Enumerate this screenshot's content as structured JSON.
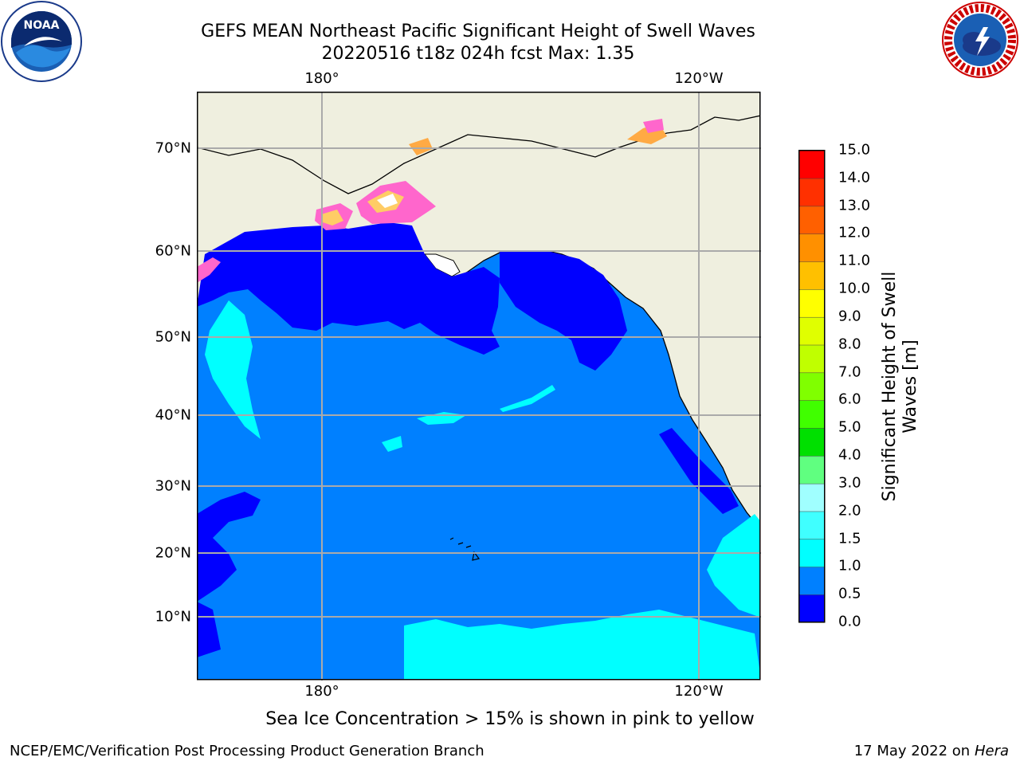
{
  "title": {
    "line1": "GEFS MEAN Northeast Pacific Significant Height of Swell Waves",
    "line2": "20220516 t18z 024h fcst   Max: 1.35"
  },
  "map": {
    "top_labels": [
      "180°",
      "120°W"
    ],
    "bottom_labels": [
      "180°",
      "120°W"
    ],
    "lat_labels": [
      "70°N",
      "60°N",
      "50°N",
      "40°N",
      "30°N",
      "20°N",
      "10°N"
    ]
  },
  "colorbar": {
    "title": "Significant Height of Swell Waves [m]",
    "ticks": [
      "0.0",
      "0.5",
      "1.0",
      "1.5",
      "2.0",
      "3.0",
      "4.0",
      "5.0",
      "6.0",
      "7.0",
      "8.0",
      "9.0",
      "10.0",
      "11.0",
      "12.0",
      "13.0",
      "14.0",
      "15.0"
    ],
    "colors": [
      "#0000ff",
      "#0080ff",
      "#00ffff",
      "#40ffff",
      "#a0ffff",
      "#60ff80",
      "#00e000",
      "#40ff00",
      "#80ff00",
      "#c0ff00",
      "#e0ff00",
      "#ffff00",
      "#ffc000",
      "#ff9000",
      "#ff6000",
      "#ff3000",
      "#ff0000"
    ]
  },
  "note": "Sea Ice Concentration > 15% is shown in pink to yellow",
  "footer": {
    "left": "NCEP/EMC/Verification Post Processing Product Generation Branch",
    "right_date": "17 May 2022 on",
    "right_host": "Hera"
  },
  "logos": {
    "noaa": "NOAA",
    "nws_ring": "NATIONAL WEATHER SERVICE"
  }
}
